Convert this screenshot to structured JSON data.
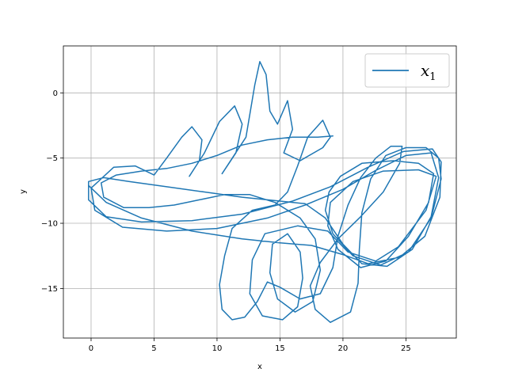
{
  "chart_data": {
    "type": "line",
    "title": "",
    "xlabel": "x",
    "ylabel": "y",
    "xlim": [
      -2.2,
      29.0
    ],
    "ylim": [
      -18.8,
      3.6
    ],
    "xticks": [
      0,
      5,
      10,
      15,
      20,
      25
    ],
    "yticks": [
      0,
      -5,
      -10,
      -15
    ],
    "tick_labels_x": [
      "0",
      "5",
      "10",
      "15",
      "20",
      "25"
    ],
    "tick_labels_y": [
      "0",
      "−5",
      "−10",
      "−15"
    ],
    "grid": true,
    "legend": {
      "position": "top-right",
      "entries": [
        {
          "label": "x",
          "subscript": "1",
          "color": "#1f77b4"
        }
      ]
    },
    "series": [
      {
        "color": "#1f77b4",
        "points": [
          [
            -0.2,
            -7.1
          ],
          [
            1.2,
            -8.4
          ],
          [
            4.0,
            -9.6
          ],
          [
            8.0,
            -10.6
          ],
          [
            12.0,
            -11.2
          ],
          [
            15.0,
            -11.5
          ],
          [
            17.5,
            -11.7
          ],
          [
            20.0,
            -12.4
          ],
          [
            22.0,
            -13.1
          ],
          [
            24.5,
            -12.6
          ],
          [
            26.5,
            -11.0
          ],
          [
            27.7,
            -8.0
          ],
          [
            27.8,
            -5.3
          ],
          [
            27.1,
            -4.3
          ],
          [
            24.8,
            -4.5
          ],
          [
            22.0,
            -5.7
          ],
          [
            19.0,
            -7.2
          ],
          [
            16.0,
            -8.3
          ],
          [
            12.0,
            -9.3
          ],
          [
            8.0,
            -9.8
          ],
          [
            4.0,
            -9.9
          ],
          [
            1.2,
            -9.5
          ],
          [
            -0.2,
            -8.2
          ],
          [
            -0.2,
            -6.8
          ],
          [
            1.0,
            -6.5
          ],
          [
            3.0,
            -6.8
          ],
          [
            6.0,
            -7.2
          ],
          [
            9.0,
            -7.6
          ],
          [
            12.0,
            -8.0
          ],
          [
            15.0,
            -8.3
          ],
          [
            17.0,
            -8.5
          ],
          [
            18.6,
            -9.6
          ],
          [
            20.0,
            -11.6
          ],
          [
            21.5,
            -13.1
          ],
          [
            23.5,
            -13.3
          ],
          [
            25.5,
            -12.0
          ],
          [
            27.0,
            -9.5
          ],
          [
            27.6,
            -6.5
          ],
          [
            27.0,
            -4.6
          ],
          [
            25.0,
            -4.8
          ],
          [
            22.5,
            -6.0
          ],
          [
            20.0,
            -7.4
          ],
          [
            17.0,
            -8.6
          ],
          [
            14.0,
            -9.6
          ],
          [
            10.0,
            -10.4
          ],
          [
            6.0,
            -10.6
          ],
          [
            2.5,
            -10.3
          ],
          [
            0.3,
            -9.0
          ],
          [
            0.0,
            -7.3
          ],
          [
            1.8,
            -5.7
          ],
          [
            3.5,
            -5.6
          ],
          [
            5.0,
            -6.3
          ],
          [
            6.0,
            -5.0
          ],
          [
            7.2,
            -3.4
          ],
          [
            8.0,
            -2.6
          ],
          [
            8.8,
            -3.6
          ],
          [
            8.6,
            -5.2
          ],
          [
            7.8,
            -6.4
          ],
          [
            9.0,
            -4.6
          ],
          [
            10.2,
            -2.2
          ],
          [
            11.4,
            -1.0
          ],
          [
            12.0,
            -2.4
          ],
          [
            11.5,
            -4.6
          ],
          [
            10.4,
            -6.2
          ],
          [
            12.3,
            -3.4
          ],
          [
            13.0,
            0.6
          ],
          [
            13.4,
            2.4
          ],
          [
            13.9,
            1.4
          ],
          [
            14.2,
            -1.4
          ],
          [
            14.8,
            -2.4
          ],
          [
            15.6,
            -0.6
          ],
          [
            16.0,
            -2.8
          ],
          [
            15.3,
            -4.6
          ],
          [
            16.6,
            -5.2
          ],
          [
            18.4,
            -4.2
          ],
          [
            19.0,
            -3.4
          ],
          [
            18.4,
            -2.1
          ],
          [
            17.2,
            -3.4
          ],
          [
            16.4,
            -5.6
          ],
          [
            15.6,
            -7.6
          ],
          [
            14.6,
            -8.6
          ],
          [
            12.8,
            -9.0
          ],
          [
            11.2,
            -10.4
          ],
          [
            10.6,
            -12.5
          ],
          [
            10.2,
            -14.7
          ],
          [
            10.4,
            -16.6
          ],
          [
            11.2,
            -17.4
          ],
          [
            12.2,
            -17.2
          ],
          [
            13.2,
            -16.0
          ],
          [
            14.0,
            -14.5
          ],
          [
            15.0,
            -14.9
          ],
          [
            16.6,
            -15.8
          ],
          [
            18.2,
            -15.4
          ],
          [
            19.2,
            -13.4
          ],
          [
            19.6,
            -11.0
          ],
          [
            20.4,
            -8.6
          ],
          [
            21.4,
            -6.5
          ],
          [
            22.6,
            -5.0
          ],
          [
            23.8,
            -4.1
          ],
          [
            24.7,
            -4.1
          ],
          [
            24.5,
            -5.4
          ],
          [
            23.2,
            -7.6
          ],
          [
            21.4,
            -9.5
          ],
          [
            19.6,
            -11.2
          ],
          [
            18.2,
            -13.0
          ],
          [
            17.4,
            -14.8
          ],
          [
            17.8,
            -16.6
          ],
          [
            19.0,
            -17.6
          ],
          [
            20.6,
            -16.8
          ],
          [
            21.2,
            -14.6
          ],
          [
            21.3,
            -12.0
          ],
          [
            21.5,
            -9.2
          ],
          [
            22.2,
            -6.6
          ],
          [
            23.4,
            -4.8
          ],
          [
            25.0,
            -4.2
          ],
          [
            26.6,
            -4.2
          ],
          [
            27.6,
            -5.0
          ],
          [
            27.8,
            -6.6
          ],
          [
            27.0,
            -9.6
          ],
          [
            25.2,
            -12.2
          ],
          [
            23.0,
            -13.2
          ],
          [
            20.8,
            -12.5
          ],
          [
            19.2,
            -10.8
          ],
          [
            18.6,
            -9.0
          ],
          [
            18.9,
            -7.6
          ],
          [
            19.8,
            -6.4
          ],
          [
            21.5,
            -5.4
          ],
          [
            24.0,
            -5.2
          ],
          [
            26.0,
            -5.4
          ],
          [
            27.2,
            -6.2
          ],
          [
            26.8,
            -8.4
          ],
          [
            25.2,
            -11.0
          ],
          [
            23.4,
            -12.9
          ],
          [
            21.4,
            -13.4
          ],
          [
            19.6,
            -12.0
          ],
          [
            18.8,
            -10.2
          ],
          [
            19.0,
            -8.4
          ],
          [
            20.8,
            -6.8
          ],
          [
            23.2,
            -6.0
          ],
          [
            26.0,
            -5.9
          ],
          [
            27.4,
            -6.4
          ],
          [
            26.6,
            -9.0
          ],
          [
            24.4,
            -11.8
          ],
          [
            22.6,
            -12.9
          ],
          [
            20.4,
            -12.2
          ],
          [
            18.8,
            -10.6
          ],
          [
            16.4,
            -10.2
          ],
          [
            13.8,
            -10.8
          ],
          [
            12.8,
            -12.8
          ],
          [
            12.6,
            -15.4
          ],
          [
            13.6,
            -17.1
          ],
          [
            15.2,
            -17.4
          ],
          [
            16.4,
            -16.4
          ],
          [
            16.8,
            -14.2
          ],
          [
            16.6,
            -12.2
          ],
          [
            15.6,
            -10.8
          ],
          [
            14.4,
            -11.6
          ],
          [
            14.2,
            -13.8
          ],
          [
            14.8,
            -15.8
          ],
          [
            16.2,
            -16.8
          ],
          [
            17.6,
            -16.0
          ],
          [
            18.2,
            -13.6
          ],
          [
            17.8,
            -11.2
          ],
          [
            16.6,
            -9.6
          ],
          [
            14.6,
            -8.4
          ],
          [
            12.6,
            -7.8
          ],
          [
            10.6,
            -7.8
          ],
          [
            8.6,
            -8.2
          ],
          [
            6.6,
            -8.6
          ],
          [
            4.6,
            -8.8
          ],
          [
            2.6,
            -8.8
          ],
          [
            1.0,
            -8.0
          ],
          [
            0.8,
            -6.9
          ],
          [
            2.0,
            -6.3
          ],
          [
            4.0,
            -6.0
          ],
          [
            6.0,
            -5.8
          ],
          [
            8.0,
            -5.4
          ],
          [
            10.0,
            -4.8
          ],
          [
            12.0,
            -4.0
          ],
          [
            14.0,
            -3.6
          ],
          [
            16.0,
            -3.4
          ],
          [
            18.0,
            -3.4
          ],
          [
            19.2,
            -3.3
          ]
        ]
      }
    ]
  }
}
